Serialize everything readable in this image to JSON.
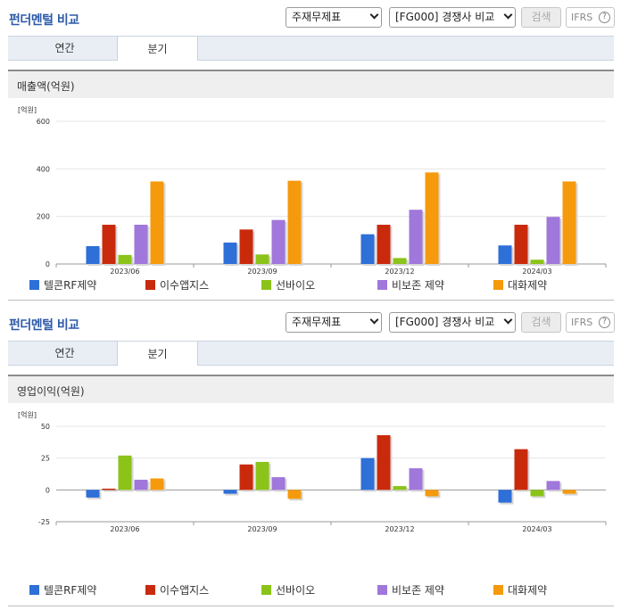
{
  "colors": [
    "#2e6fd8",
    "#c92a0c",
    "#8bc319",
    "#a077db",
    "#f59a0c"
  ],
  "series_names": [
    "텔콘RF제약",
    "이수앱지스",
    "선바이오",
    "비보존 제약",
    "대화제약"
  ],
  "panels": [
    {
      "title": "펀더멘털 비교",
      "select_1": "주재무제표",
      "select_2": "[FG000] 경쟁사 비교",
      "search_button": "검색",
      "ifrs_label": "IFRS",
      "ifrs_help": "?",
      "tabs": [
        "연간",
        "분기"
      ],
      "active_tab": "분기",
      "section_title": "매출액(억원)",
      "unit": "[억원]"
    },
    {
      "title": "펀더멘털 비교",
      "select_1": "주재무제표",
      "select_2": "[FG000] 경쟁사 비교",
      "search_button": "검색",
      "ifrs_label": "IFRS",
      "ifrs_help": "?",
      "tabs": [
        "연간",
        "분기"
      ],
      "active_tab": "분기",
      "section_title": "영업이익(억원)",
      "unit": "[억원]"
    }
  ],
  "chart_data": [
    {
      "type": "bar",
      "title": "매출액(억원)",
      "ylabel": "[억원]",
      "categories": [
        "2023/06",
        "2023/09",
        "2023/12",
        "2024/03"
      ],
      "ylim": [
        0,
        600
      ],
      "yticks": [
        0,
        200,
        400,
        600
      ],
      "grid": true,
      "legend": "bottom",
      "series": [
        {
          "name": "텔콘RF제약",
          "values": [
            75,
            90,
            125,
            78
          ]
        },
        {
          "name": "이수앱지스",
          "values": [
            165,
            145,
            165,
            165
          ]
        },
        {
          "name": "선바이오",
          "values": [
            38,
            40,
            25,
            18
          ]
        },
        {
          "name": "비보존 제약",
          "values": [
            165,
            185,
            228,
            198
          ]
        },
        {
          "name": "대화제약",
          "values": [
            347,
            350,
            385,
            347
          ]
        }
      ]
    },
    {
      "type": "bar",
      "title": "영업이익(억원)",
      "ylabel": "[억원]",
      "categories": [
        "2023/06",
        "2023/09",
        "2023/12",
        "2024/03"
      ],
      "ylim": [
        -25,
        50
      ],
      "yticks": [
        -25,
        0,
        25,
        50
      ],
      "grid": true,
      "legend": "bottom",
      "series": [
        {
          "name": "텔콘RF제약",
          "values": [
            -6,
            -3,
            25,
            -10
          ]
        },
        {
          "name": "이수앱지스",
          "values": [
            1,
            20,
            43,
            32
          ]
        },
        {
          "name": "선바이오",
          "values": [
            27,
            22,
            3,
            -5
          ]
        },
        {
          "name": "비보존 제약",
          "values": [
            8,
            10,
            17,
            7
          ]
        },
        {
          "name": "대화제약",
          "values": [
            9,
            -7,
            -5,
            -3
          ]
        }
      ]
    }
  ]
}
